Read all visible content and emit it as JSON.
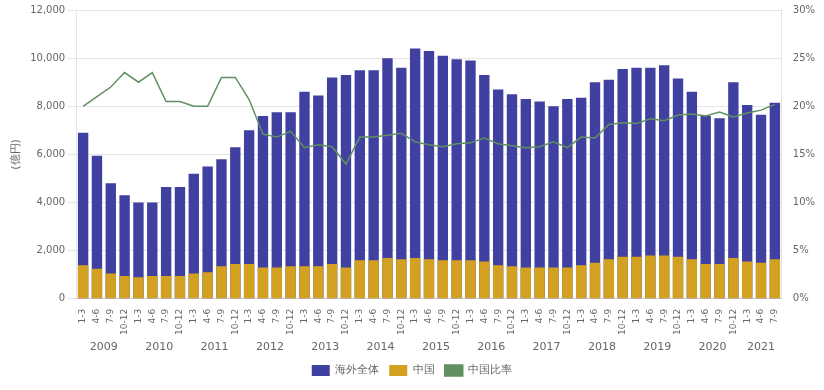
{
  "chart_data": {
    "type": "bar",
    "categories": [
      "1-3",
      "4-6",
      "7-9",
      "10-12",
      "1-3",
      "4-6",
      "7-9",
      "10-12",
      "1-3",
      "4-6",
      "7-9",
      "10-12",
      "1-3",
      "4-6",
      "7-9",
      "10-12",
      "1-3",
      "4-6",
      "7-9",
      "10-12",
      "1-3",
      "4-6",
      "7-9",
      "10-12",
      "1-3",
      "4-6",
      "7-9",
      "10-12",
      "1-3",
      "4-6",
      "7-9",
      "10-12",
      "1-3",
      "4-6",
      "7-9",
      "10-12",
      "1-3",
      "4-6",
      "7-9",
      "10-12",
      "1-3",
      "4-6",
      "7-9",
      "10-12",
      "1-3",
      "4-6",
      "7-9",
      "10-12",
      "1-3",
      "4-6",
      "7-9"
    ],
    "series": [
      {
        "name": "海外全体",
        "color": "#4040a0",
        "values": [
          6900,
          5950,
          4800,
          4300,
          4000,
          4000,
          4650,
          4650,
          5200,
          5500,
          5800,
          6300,
          7000,
          7600,
          7750,
          7750,
          8600,
          8450,
          9200,
          9300,
          9500,
          9500,
          10000,
          9600,
          10400,
          10300,
          10100,
          9950,
          9900,
          9300,
          8700,
          8500,
          8300,
          8200,
          8000,
          8300,
          8350,
          9000,
          9100,
          9550,
          9600,
          9600,
          9700,
          9150,
          8600,
          7600,
          7500,
          9000,
          8050,
          7650,
          8150
        ]
      },
      {
        "name": "中国",
        "color": "#d4a020",
        "values": [
          1400,
          1250,
          1050,
          950,
          900,
          950,
          950,
          950,
          1050,
          1100,
          1350,
          1450,
          1450,
          1300,
          1300,
          1350,
          1350,
          1350,
          1450,
          1300,
          1600,
          1600,
          1700,
          1650,
          1700,
          1650,
          1600,
          1600,
          1600,
          1550,
          1400,
          1350,
          1300,
          1300,
          1300,
          1300,
          1400,
          1500,
          1650,
          1750,
          1750,
          1800,
          1800,
          1750,
          1650,
          1450,
          1450,
          1700,
          1550,
          1500,
          1650
        ]
      },
      {
        "name": "中国比率",
        "type": "line",
        "axis": "y2",
        "color": "#609060",
        "values": [
          20.0,
          21.0,
          22.0,
          23.5,
          22.5,
          23.5,
          20.5,
          20.5,
          20.0,
          20.0,
          23.0,
          23.0,
          20.7,
          17.1,
          16.8,
          17.4,
          15.7,
          16.0,
          15.8,
          14.0,
          16.8,
          16.8,
          17.0,
          17.2,
          16.3,
          16.0,
          15.8,
          16.1,
          16.2,
          16.7,
          16.1,
          15.9,
          15.7,
          15.8,
          16.3,
          15.7,
          16.8,
          16.7,
          18.1,
          18.3,
          18.2,
          18.7,
          18.5,
          19.1,
          19.2,
          19.0,
          19.4,
          18.9,
          19.3,
          19.6,
          20.2
        ]
      }
    ],
    "ylabel": "(億円)",
    "ylim": [
      0,
      12000
    ],
    "yticks": [
      0,
      {
        "value": 2000,
        "label": "2,000"
      },
      {
        "value": 4000,
        "label": "4,000"
      },
      {
        "value": 6000,
        "label": "6,000"
      },
      {
        "value": 8000,
        "label": "8,000"
      },
      {
        "value": 10000,
        "label": "10,000"
      },
      {
        "value": 12000,
        "label": "12,000"
      }
    ],
    "y2lim": [
      0,
      30
    ],
    "y2ticks": [
      {
        "value": 0,
        "label": "0%"
      },
      {
        "value": 5,
        "label": "5%"
      },
      {
        "value": 10,
        "label": "10%"
      },
      {
        "value": 15,
        "label": "15%"
      },
      {
        "value": 20,
        "label": "20%"
      },
      {
        "value": 25,
        "label": "25%"
      },
      {
        "value": 30,
        "label": "30%"
      }
    ],
    "annotations": [
      {
        "text": "2009",
        "span": 4
      },
      {
        "text": "2010",
        "span": 4
      },
      {
        "text": "2011",
        "span": 4
      },
      {
        "text": "2012",
        "span": 4
      },
      {
        "text": "2013",
        "span": 4
      },
      {
        "text": "2014",
        "span": 4
      },
      {
        "text": "2015",
        "span": 4
      },
      {
        "text": "2016",
        "span": 4
      },
      {
        "text": "2017",
        "span": 4
      },
      {
        "text": "2018",
        "span": 4
      },
      {
        "text": "2019",
        "span": 4
      },
      {
        "text": "2020",
        "span": 4
      },
      {
        "text": "2021",
        "span": 3
      }
    ],
    "grid": true,
    "legend": "bottom"
  }
}
